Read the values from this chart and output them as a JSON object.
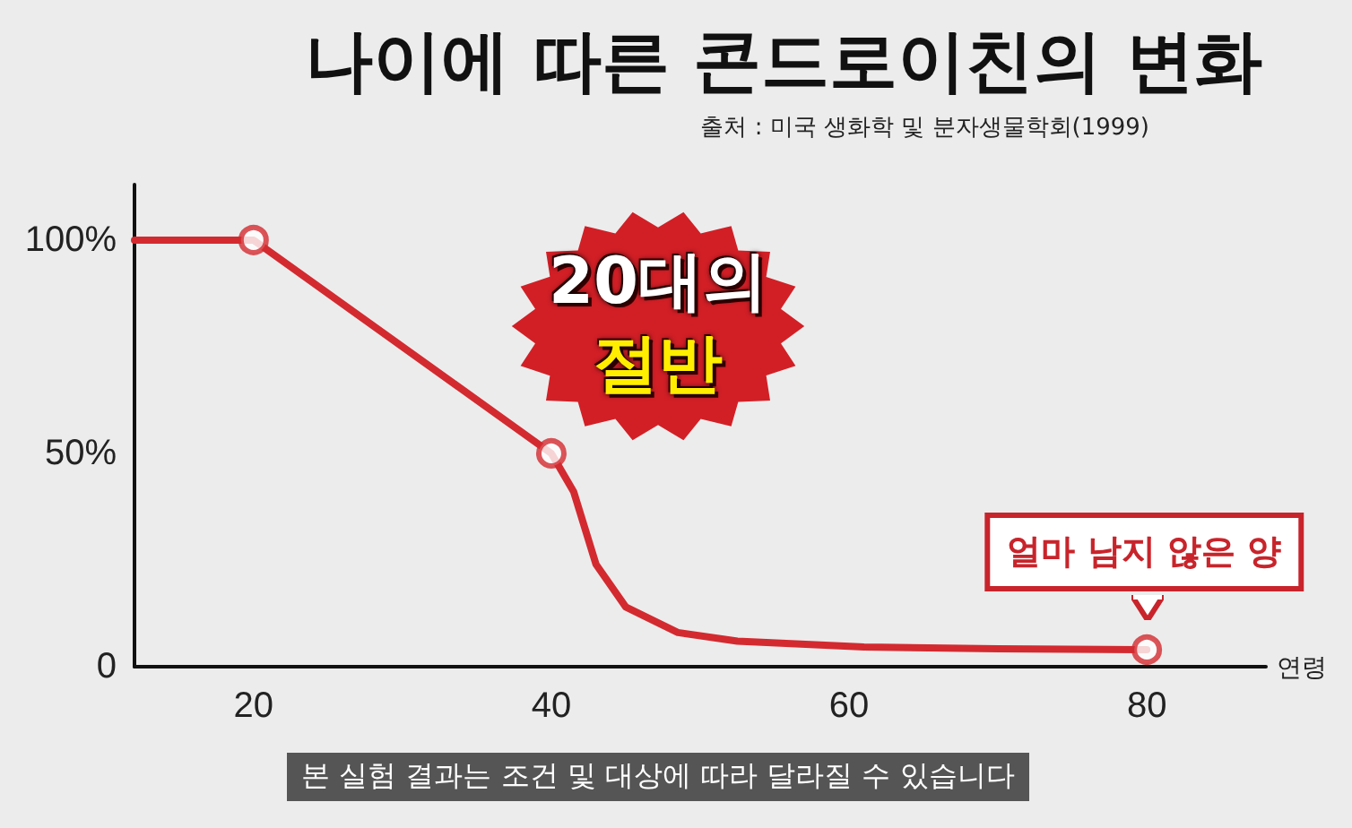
{
  "chart_data": {
    "type": "line",
    "title": "나이에 따른 콘드로이친의 변화",
    "subtitle": "출처 : 미국 생화학 및 분자생물학회(1999)",
    "xlabel": "연령",
    "series": [
      {
        "color": "#d32a30",
        "marker": "none",
        "x": [
          12,
          20,
          40,
          41.5,
          43,
          45,
          48.5,
          52.5,
          61,
          70,
          80
        ],
        "values": [
          100,
          100,
          50,
          41,
          24,
          14,
          8,
          6,
          4.6,
          4.2,
          4
        ]
      },
      {
        "type": "scatter",
        "color": "#d32a30",
        "marker": "circle",
        "x": [
          20,
          40,
          80
        ],
        "values": [
          100,
          50,
          4
        ]
      }
    ],
    "xlim": [
      12,
      88
    ],
    "xticks": [
      20,
      40,
      60,
      80
    ],
    "ylim": [
      0,
      113
    ],
    "yticks": [
      {
        "value": 0,
        "label": "0"
      },
      {
        "value": 50,
        "label": "50%"
      },
      {
        "value": 100,
        "label": "100%"
      }
    ],
    "annotations": [
      "20대의\n절반",
      {
        "text": "얼마 남지 않은 양",
        "x": 80,
        "y": 4
      },
      "본 실험 결과는 조건 및 대상에 따라 달라질 수 있습니다"
    ],
    "grid": false
  }
}
